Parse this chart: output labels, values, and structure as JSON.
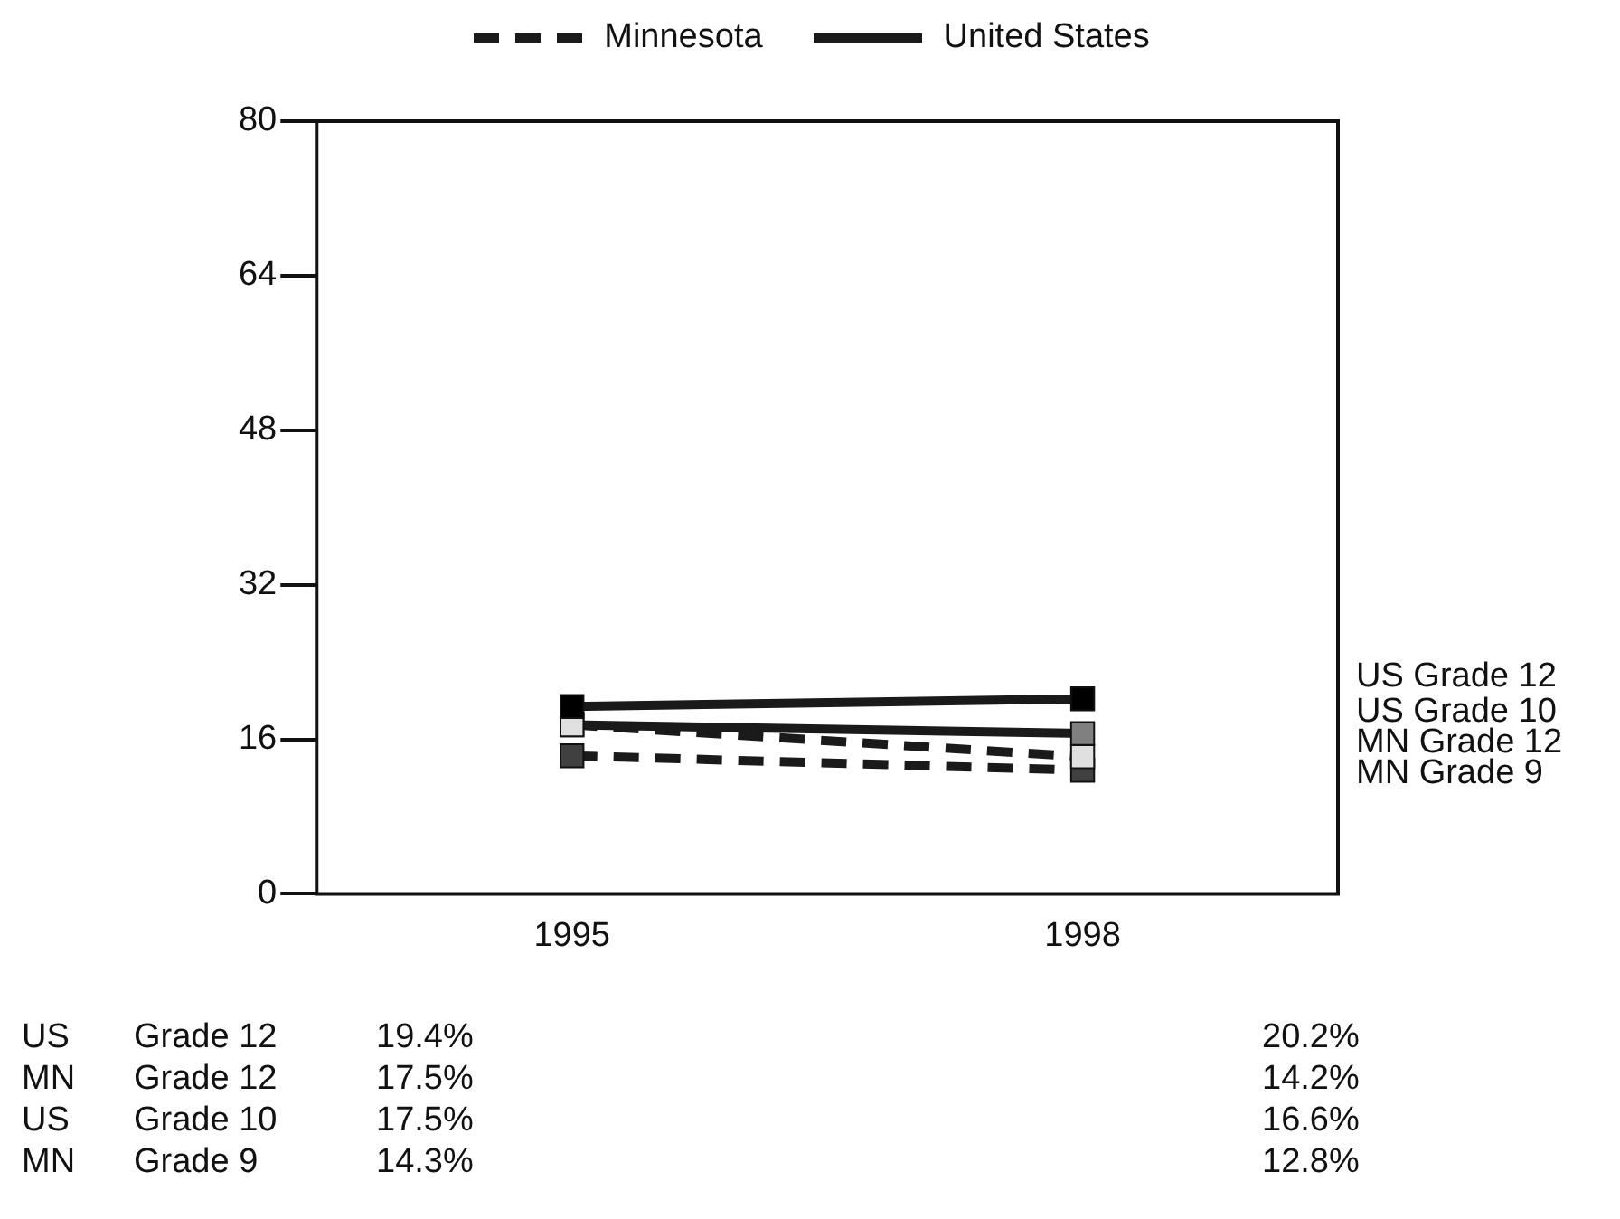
{
  "chart_data": {
    "type": "line",
    "categories": [
      "1995",
      "1998"
    ],
    "ylim": [
      0,
      80
    ],
    "yticks": [
      0,
      16,
      32,
      48,
      64,
      80
    ],
    "grid": false,
    "marker": "square",
    "legend": "right",
    "annotations": [
      "Minnesota",
      "United States"
    ],
    "series": [
      {
        "name": "US Grade 12",
        "color": "#1a1a1a",
        "colors": [
          "#000000",
          "#000000"
        ],
        "line_style": "solid",
        "values": [
          19.4,
          20.2
        ],
        "value_labels": [
          "19.4%",
          "20.2%"
        ]
      },
      {
        "name": "MN Grade 12",
        "color": "#1a1a1a",
        "colors": [
          "#e0e0e0",
          "#e0e0e0"
        ],
        "line_style": "dashed",
        "values": [
          17.5,
          14.2
        ],
        "value_labels": [
          "17.5%",
          "14.2%"
        ]
      },
      {
        "name": "US Grade 10",
        "color": "#1a1a1a",
        "colors": [
          "#808080",
          "#808080"
        ],
        "line_style": "solid",
        "values": [
          17.5,
          16.6
        ],
        "value_labels": [
          "17.5%",
          "16.6%"
        ]
      },
      {
        "name": "MN Grade 9",
        "color": "#1a1a1a",
        "colors": [
          "#404040",
          "#404040"
        ],
        "line_style": "dashed",
        "values": [
          14.3,
          12.8
        ],
        "value_labels": [
          "14.3%",
          "12.8%"
        ]
      }
    ]
  }
}
